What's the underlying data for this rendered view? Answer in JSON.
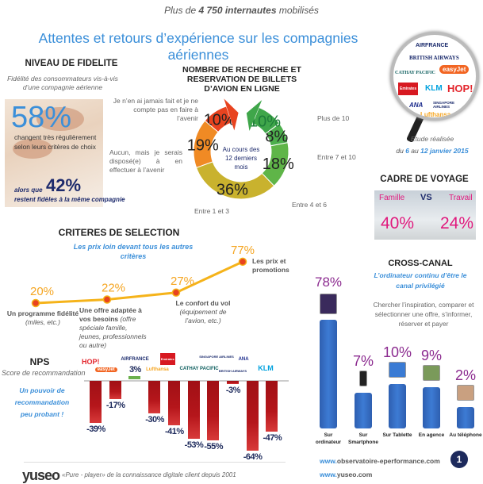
{
  "header": {
    "pre": "Plus de ",
    "bold": "4 750 internautes",
    "post": " mobilisés",
    "title": "Attentes et retours d’expérience sur les compagnies aériennes"
  },
  "fidelite": {
    "title": "NIVEAU DE FIDELITE",
    "subtitle": "Fidélité des consommateurs vis-à-vis d’une compagnie aérienne",
    "pct1": "58%",
    "text1": "changent très régulièrement selon leurs critères de choix",
    "prefix2": "alors que",
    "pct2": "42%",
    "text2": "restent fidèles à la même compagnie"
  },
  "study": {
    "line1": "Etude réalisée",
    "line2_a": "du ",
    "d1": "6",
    "line2_b": " au ",
    "d2": "12 janvier 2015"
  },
  "logos": [
    "AIRFRANCE",
    "BRITISH AIRWAYS",
    "CATHAY PACIFIC",
    "easyJet",
    "Emirates",
    "KLM",
    "HOP!",
    "ANA",
    "SINGAPORE AIRLINES",
    "Lufthansa"
  ],
  "cadre": {
    "title": "CADRE DE VOYAGE",
    "left": "Famille",
    "vs": "VS",
    "right": "Travail",
    "left_pct": "40%",
    "right_pct": "24%"
  },
  "footer": {
    "tagline": "«Pure - player» de la connaissance digitale client depuis 2001",
    "logo": "yuseo",
    "url1_a": "www.",
    "url1_b": "observatoire-eperformance.com",
    "url2_a": "www.",
    "url2_b": "yuseo.com",
    "page": "1"
  },
  "chart_data": [
    {
      "type": "pie",
      "title": "NOMBRE DE RECHERCHE ET RESERVATION DE BILLETS D’AVION EN LIGNE",
      "center_label": "Au cours des 12 derniers mois",
      "categories": [
        "Je n’en ai jamais fait et je ne compte pas en faire à l’avenir",
        "Aucun, mais je serais disposé(e) à en effectuer à l’avenir",
        "Entre 1 et 3",
        "Entre 4 et 6",
        "Entre 7 et 10",
        "Plus de 10"
      ],
      "values": [
        10,
        19,
        36,
        18,
        8,
        10
      ],
      "labels": [
        "10%",
        "19%",
        "36%",
        "18%",
        "8%",
        "10%"
      ],
      "colors": [
        "#e8431f",
        "#f08a24",
        "#c9b22e",
        "#5fb548",
        "#4cae4c",
        "#3fa64a"
      ]
    },
    {
      "type": "line",
      "title": "CRITERES DE SELECTION",
      "subtitle": "Les prix loin devant tous les autres critères",
      "categories": [
        "Un programme fidélité",
        "Une offre adaptée à vos besoins",
        "Le confort du vol",
        "Les prix et promotions"
      ],
      "category_notes": [
        "(miles, etc.)",
        "(offre spéciale famille, jeunes, professionnels ou autre)",
        "(équipement de l’avion, etc.)",
        ""
      ],
      "values": [
        20,
        22,
        27,
        77
      ],
      "labels": [
        "20%",
        "22%",
        "27%",
        "77%"
      ]
    },
    {
      "type": "bar",
      "title": "NPS",
      "subtitle": "Score de recommandation",
      "annotation": "Un pouvoir de recommandation peu probant !",
      "categories": [
        "HOP!",
        "easyJet",
        "AIRFRANCE",
        "Lufthansa",
        "Emirates",
        "CATHAY PACIFIC",
        "SINGAPORE AIRLINES",
        "BRITISH AIRWAYS",
        "ANA",
        "KLM"
      ],
      "values": [
        -39,
        -17,
        3,
        -30,
        -41,
        -53,
        -55,
        -3,
        -64,
        -47
      ],
      "labels": [
        "-39%",
        "-17%",
        "3%",
        "-30%",
        "-41%",
        "-53%",
        "-55%",
        "-3%",
        "-64%",
        "-47%"
      ],
      "colors": {
        "negative": "#b5161b",
        "positive": "#6ab04c"
      }
    },
    {
      "type": "bar",
      "title": "CROSS-CANAL",
      "subtitle": "L’ordinateur continu d’être le canal privilégié",
      "description": "Chercher l’inspiration, comparer et sélectionner une offre, s’informer, réserver et payer",
      "categories": [
        "Sur ordinateur",
        "Sur Smartphone",
        "Sur Tablette",
        "En agence",
        "Au téléphone"
      ],
      "values": [
        78,
        7,
        10,
        9,
        2
      ],
      "labels": [
        "78%",
        "7%",
        "10%",
        "9%",
        "2%"
      ],
      "color": "#3470c4"
    }
  ]
}
